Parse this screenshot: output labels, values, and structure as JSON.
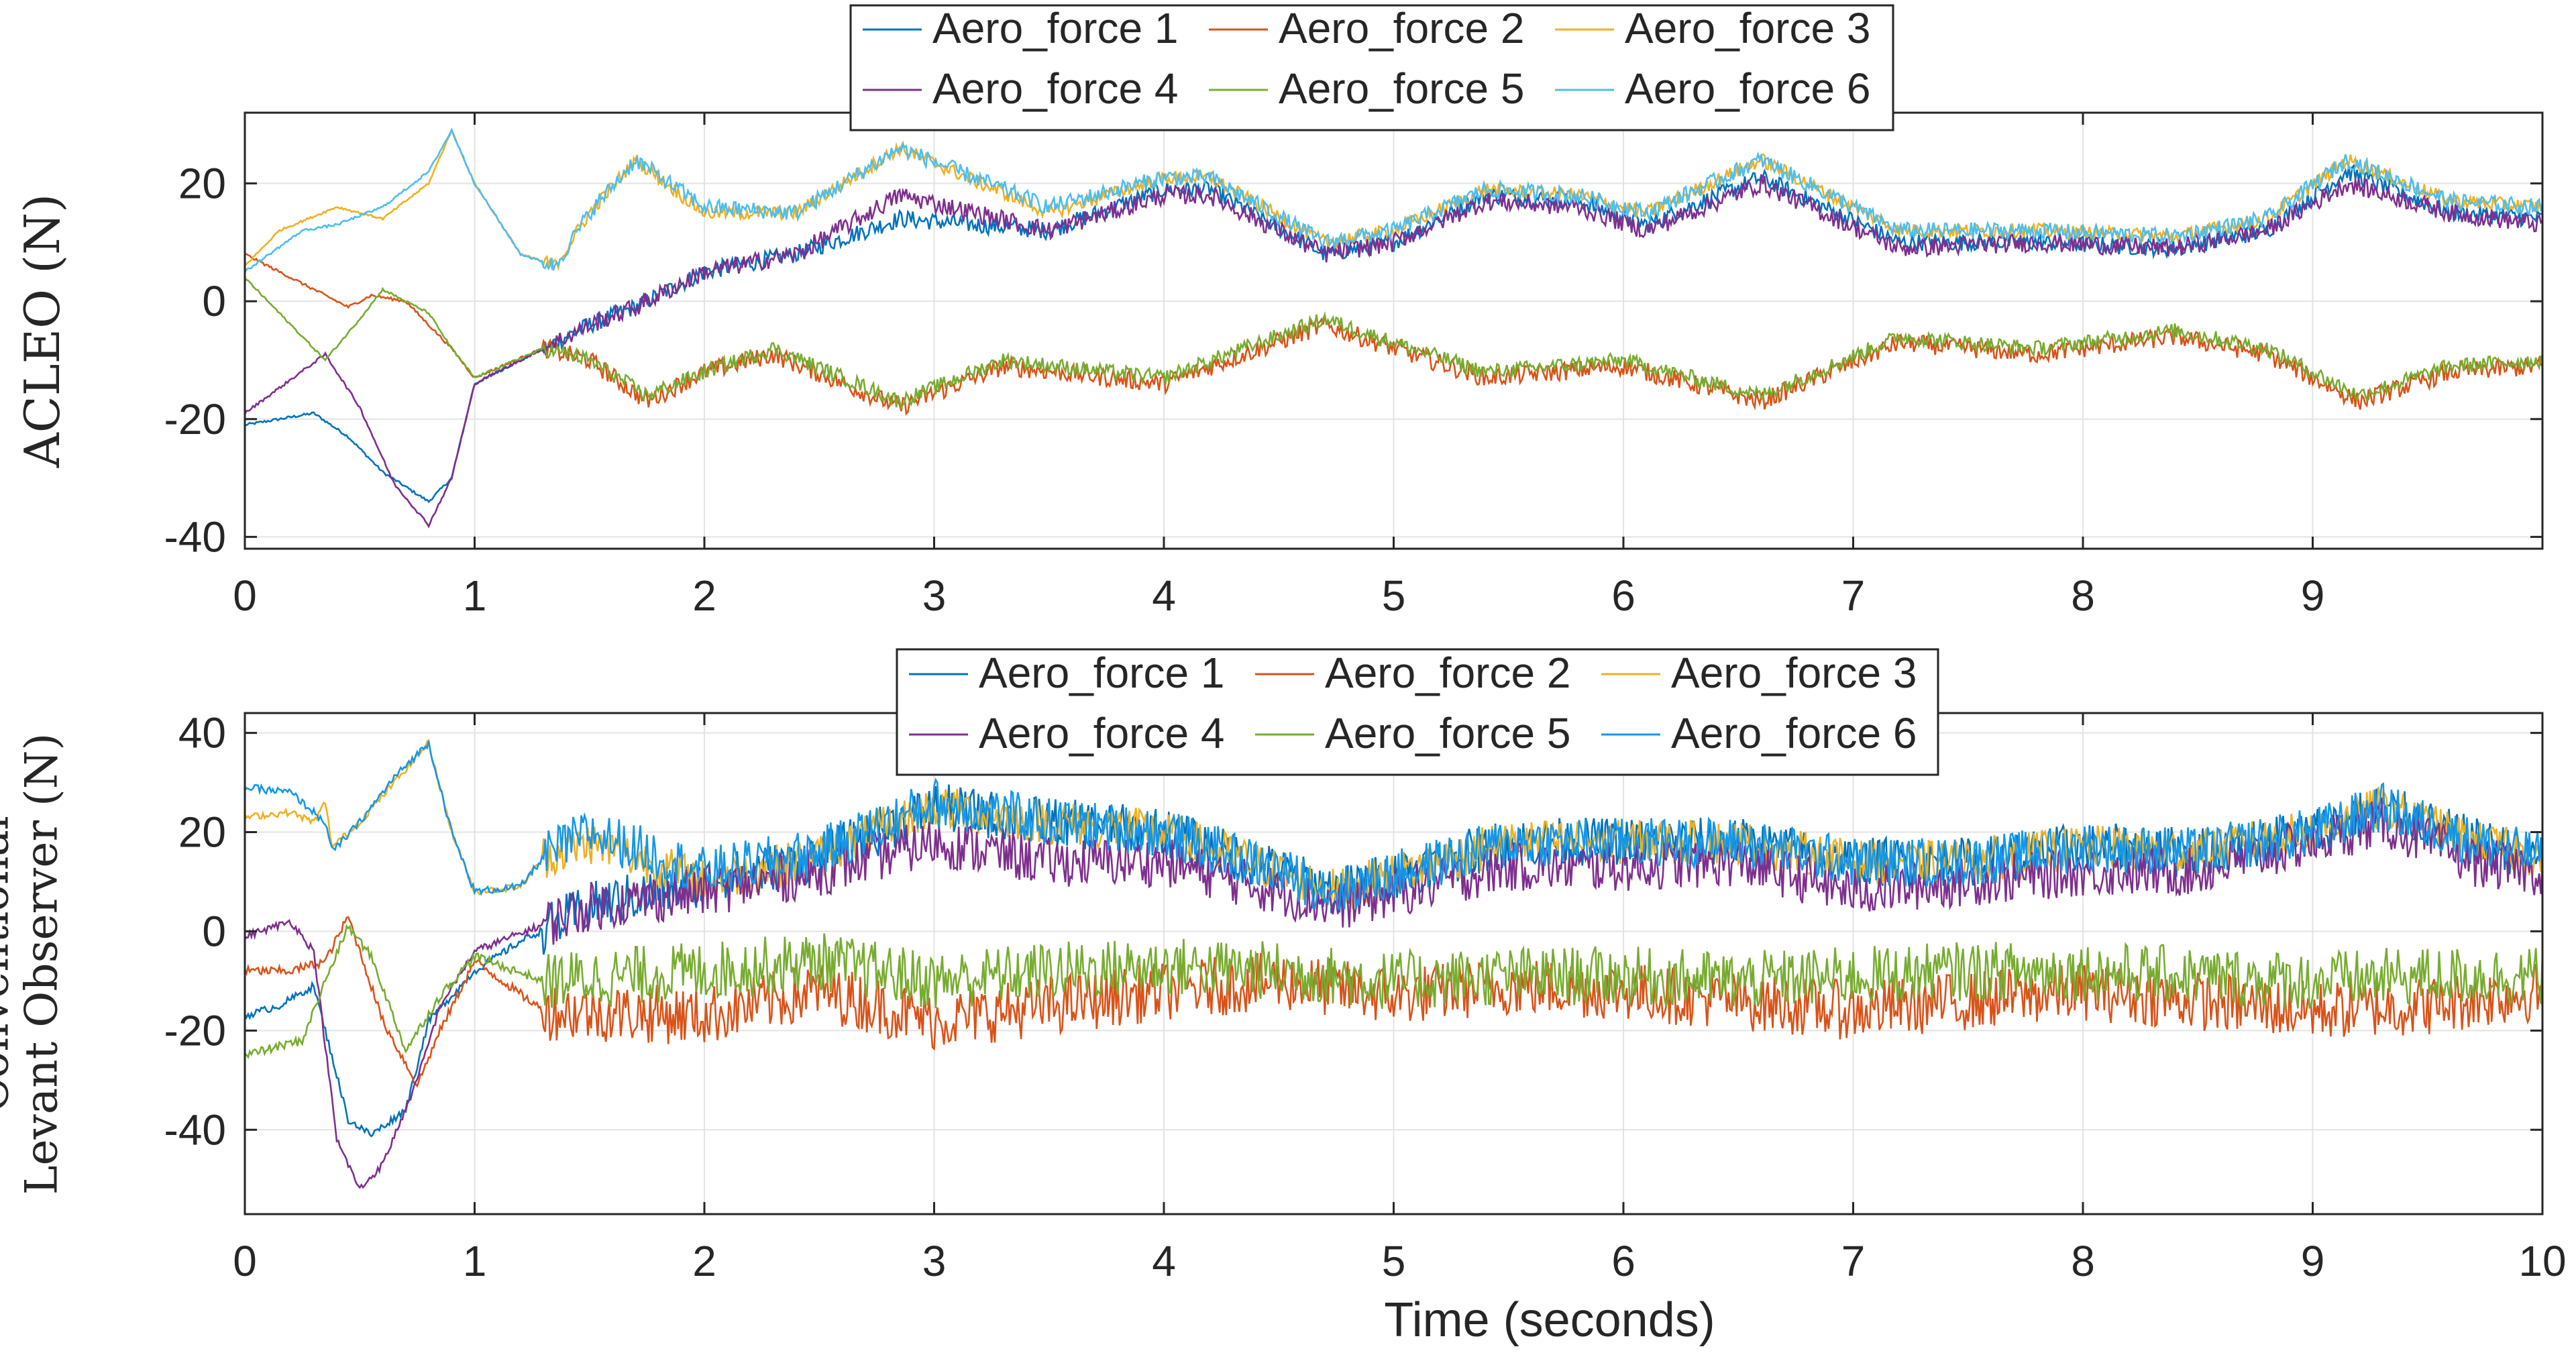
{
  "figure": {
    "xlabel": "Time (seconds)"
  },
  "chart_data": [
    {
      "type": "line",
      "ylabel": "ACLEO (N)",
      "ylabel_lines": [
        "ACLEO (N)"
      ],
      "xlim": [
        0,
        10
      ],
      "ylim": [
        -42,
        32
      ],
      "xticks": [
        0,
        1,
        2,
        3,
        4,
        5,
        6,
        7,
        8,
        9
      ],
      "xtick_labels": [
        "0",
        "1",
        "2",
        "3",
        "4",
        "5",
        "6",
        "7",
        "8",
        "9"
      ],
      "yticks": [
        -40,
        -20,
        0,
        20
      ],
      "ytick_labels": [
        "-40",
        "-20",
        "0",
        "20"
      ],
      "grid": true,
      "legend": {
        "placement": "top-center (above axes)",
        "columns": 3,
        "entries": [
          "Aero_force 1",
          "Aero_force 2",
          "Aero_force 3",
          "Aero_force 4",
          "Aero_force 5",
          "Aero_force 6"
        ]
      },
      "series": [
        {
          "name": "Aero_force 1",
          "color": "#0072BD",
          "x": [
            0,
            0.3,
            0.45,
            0.6,
            0.8,
            0.9,
            1.0,
            1.3,
            1.5,
            1.7,
            2.0,
            2.4,
            2.85,
            3.5,
            4.0,
            4.2,
            4.7,
            5.0,
            5.4,
            5.8,
            6.1,
            6.6,
            7.2,
            7.8,
            8.4,
            8.8,
            9.15,
            9.6,
            10.0
          ],
          "y": [
            -21,
            -19,
            -23,
            -29,
            -34,
            -30,
            -14,
            -8,
            -4,
            -1,
            5,
            8,
            14,
            12,
            19,
            19,
            8,
            10,
            18,
            17,
            13,
            21,
            10,
            10,
            9,
            12,
            22,
            15,
            14
          ],
          "noise": 1.5
        },
        {
          "name": "Aero_force 2",
          "color": "#D95319",
          "x": [
            0,
            0.3,
            0.45,
            0.55,
            0.7,
            0.9,
            1.0,
            1.3,
            1.5,
            1.75,
            2.0,
            2.3,
            2.85,
            3.3,
            4.0,
            4.7,
            5.0,
            5.4,
            6.0,
            6.6,
            7.2,
            7.8,
            8.4,
            8.8,
            9.2,
            9.6,
            10.0
          ],
          "y": [
            8,
            2,
            -1,
            1,
            0,
            -8,
            -13,
            -8,
            -10,
            -17,
            -12,
            -9,
            -18,
            -11,
            -14,
            -4,
            -8,
            -13,
            -11,
            -17,
            -7,
            -9,
            -6,
            -9,
            -17,
            -12,
            -11
          ],
          "noise": 1.6
        },
        {
          "name": "Aero_force 3",
          "color": "#EDB120",
          "x": [
            0,
            0.15,
            0.4,
            0.6,
            0.8,
            0.9,
            1.0,
            1.2,
            1.35,
            1.5,
            1.7,
            2.0,
            2.4,
            2.85,
            3.5,
            4.0,
            4.2,
            4.7,
            5.0,
            5.4,
            5.8,
            6.1,
            6.6,
            7.2,
            7.8,
            8.4,
            8.8,
            9.15,
            9.6,
            10.0
          ],
          "y": [
            6,
            12,
            16,
            14,
            20,
            29,
            20,
            8,
            6,
            15,
            24,
            15,
            15,
            26,
            15,
            21,
            21,
            10,
            12,
            19,
            18,
            15,
            24,
            12,
            12,
            11,
            14,
            24,
            17,
            16
          ],
          "noise": 1.2
        },
        {
          "name": "Aero_force 4",
          "color": "#7E2F8E",
          "x": [
            0,
            0.35,
            0.5,
            0.65,
            0.8,
            0.9,
            1.0,
            1.3,
            1.5,
            1.7,
            2.0,
            2.4,
            2.85,
            3.5,
            4.0,
            4.2,
            4.7,
            5.0,
            5.4,
            5.8,
            6.1,
            6.6,
            7.2,
            7.8,
            8.4,
            8.8,
            9.15,
            9.6,
            10.0
          ],
          "y": [
            -19,
            -9,
            -18,
            -31,
            -38,
            -30,
            -14,
            -8,
            -4,
            -1,
            5,
            8,
            18,
            12,
            18,
            18,
            8,
            10,
            17,
            16,
            12,
            20,
            9,
            10,
            9,
            12,
            20,
            15,
            13
          ],
          "noise": 1.6
        },
        {
          "name": "Aero_force 5",
          "color": "#77AC30",
          "x": [
            0,
            0.35,
            0.5,
            0.6,
            0.8,
            0.9,
            1.0,
            1.3,
            1.5,
            1.75,
            2.0,
            2.3,
            2.85,
            3.3,
            4.0,
            4.7,
            5.0,
            5.4,
            6.0,
            6.6,
            7.2,
            7.8,
            8.4,
            8.8,
            9.2,
            9.6,
            10.0
          ],
          "y": [
            4,
            -10,
            -3,
            2,
            -2,
            -8,
            -13,
            -8,
            -10,
            -16,
            -12,
            -8,
            -17,
            -10,
            -13,
            -3,
            -7,
            -12,
            -10,
            -16,
            -6,
            -8,
            -5,
            -8,
            -16,
            -11,
            -10
          ],
          "noise": 1.3
        },
        {
          "name": "Aero_force 6",
          "color": "#4DBEEE",
          "x": [
            0,
            0.25,
            0.4,
            0.6,
            0.8,
            0.9,
            1.0,
            1.2,
            1.35,
            1.5,
            1.7,
            2.0,
            2.4,
            2.85,
            3.5,
            4.0,
            4.2,
            4.7,
            5.0,
            5.4,
            5.8,
            6.1,
            6.6,
            7.2,
            7.8,
            8.4,
            8.8,
            9.15,
            9.6,
            10.0
          ],
          "y": [
            5,
            12,
            13,
            16,
            22,
            29,
            20,
            8,
            6,
            15,
            24,
            16,
            15,
            26,
            16,
            21,
            21,
            10,
            12,
            19,
            18,
            15,
            24,
            12,
            12,
            11,
            14,
            24,
            17,
            16
          ],
          "noise": 1.4
        }
      ]
    },
    {
      "type": "line",
      "ylabel": "Conventional Levant Observer (N)",
      "ylabel_lines": [
        "Conventional",
        "Levant Observer (N)"
      ],
      "xlim": [
        0,
        10
      ],
      "ylim": [
        -57,
        44
      ],
      "xticks": [
        0,
        1,
        2,
        3,
        4,
        5,
        6,
        7,
        8,
        9,
        10
      ],
      "xtick_labels": [
        "0",
        "1",
        "2",
        "3",
        "4",
        "5",
        "6",
        "7",
        "8",
        "9",
        "10"
      ],
      "yticks": [
        -40,
        -20,
        0,
        20,
        40
      ],
      "ytick_labels": [
        "-40",
        "-20",
        "0",
        "20",
        "40"
      ],
      "grid": true,
      "legend": {
        "placement": "top-center (overlapping axes top)",
        "columns": 3,
        "entries": [
          "Aero_force 1",
          "Aero_force 2",
          "Aero_force 3",
          "Aero_force 4",
          "Aero_force 5",
          "Aero_force 6"
        ]
      },
      "series": [
        {
          "name": "Aero_force 1",
          "color": "#0072BD",
          "x": [
            0,
            0.15,
            0.3,
            0.45,
            0.55,
            0.7,
            0.8,
            1.0,
            1.2,
            1.5,
            2.0,
            2.5,
            3.0,
            3.5,
            4.0,
            4.5,
            4.75,
            5.5,
            6.0,
            6.5,
            7.0,
            7.5,
            8.0,
            8.5,
            9.0,
            9.3,
            9.7,
            10.0
          ],
          "y": [
            -17,
            -15,
            -11,
            -38,
            -41,
            -36,
            -18,
            -8,
            -2,
            5,
            10,
            15,
            25,
            22,
            20,
            12,
            8,
            18,
            18,
            18,
            14,
            14,
            17,
            16,
            20,
            25,
            18,
            15
          ],
          "noise": 5
        },
        {
          "name": "Aero_force 2",
          "color": "#D95319",
          "x": [
            0,
            0.2,
            0.35,
            0.45,
            0.6,
            0.75,
            0.85,
            1.0,
            1.3,
            2.0,
            2.5,
            3.0,
            3.5,
            4.0,
            4.5,
            5.0,
            5.5,
            6.0,
            6.5,
            7.0,
            7.5,
            8.0,
            8.5,
            9.0,
            9.5,
            10.0
          ],
          "y": [
            -8,
            -8,
            -6,
            3,
            -18,
            -31,
            -20,
            -6,
            -16,
            -17,
            -12,
            -18,
            -15,
            -12,
            -10,
            -13,
            -11,
            -12,
            -14,
            -16,
            -14,
            -12,
            -14,
            -16,
            -15,
            -12
          ],
          "noise": 6
        },
        {
          "name": "Aero_force 3",
          "color": "#EDB120",
          "x": [
            0,
            0.2,
            0.3,
            0.35,
            0.38,
            0.5,
            0.65,
            0.8,
            0.9,
            1.0,
            1.2,
            1.3,
            1.5,
            2.0,
            2.5,
            3.0,
            3.5,
            4.0,
            4.5,
            4.75,
            5.5,
            6.0,
            6.5,
            7.0,
            7.5,
            8.0,
            8.5,
            9.0,
            9.3,
            9.7,
            10.0
          ],
          "y": [
            23,
            24,
            22,
            26,
            17,
            22,
            30,
            38,
            20,
            8,
            9,
            15,
            18,
            10,
            15,
            25,
            22,
            20,
            12,
            8,
            18,
            18,
            18,
            14,
            14,
            17,
            16,
            20,
            25,
            18,
            15
          ],
          "noise": 4.5
        },
        {
          "name": "Aero_force 4",
          "color": "#7E2F8E",
          "x": [
            0,
            0.2,
            0.3,
            0.4,
            0.5,
            0.6,
            0.75,
            0.85,
            1.0,
            1.5,
            2.0,
            2.5,
            3.0,
            3.5,
            4.0,
            4.5,
            4.75,
            5.5,
            6.0,
            6.5,
            7.0,
            7.5,
            8.0,
            8.5,
            9.0,
            9.3,
            9.7,
            10.0
          ],
          "y": [
            -1,
            2,
            -4,
            -42,
            -52,
            -47,
            -30,
            -15,
            -4,
            5,
            8,
            12,
            18,
            14,
            14,
            8,
            5,
            13,
            13,
            14,
            8,
            10,
            12,
            12,
            18,
            22,
            14,
            12
          ],
          "noise": 5
        },
        {
          "name": "Aero_force 5",
          "color": "#77AC30",
          "x": [
            0,
            0.25,
            0.35,
            0.45,
            0.55,
            0.7,
            0.85,
            1.0,
            1.3,
            2.0,
            2.5,
            3.0,
            3.5,
            4.0,
            4.5,
            5.0,
            5.5,
            6.0,
            6.5,
            7.0,
            7.5,
            8.0,
            8.5,
            9.0,
            9.5,
            10.0
          ],
          "y": [
            -25,
            -22,
            -10,
            1,
            -5,
            -24,
            -13,
            -5,
            -10,
            -8,
            -6,
            -10,
            -8,
            -7,
            -8,
            -10,
            -9,
            -9,
            -10,
            -9,
            -8,
            -8,
            -9,
            -10,
            -9,
            -9
          ],
          "noise": 6
        },
        {
          "name": "Aero_force 6",
          "color": "#1597E8",
          "x": [
            0,
            0.2,
            0.3,
            0.35,
            0.38,
            0.5,
            0.65,
            0.8,
            0.9,
            1.0,
            1.2,
            1.3,
            1.5,
            2.0,
            2.5,
            3.0,
            3.5,
            4.0,
            4.5,
            4.75,
            5.5,
            6.0,
            6.5,
            7.0,
            7.5,
            8.0,
            8.5,
            9.0,
            9.3,
            9.7,
            10.0
          ],
          "y": [
            29,
            28,
            24,
            22,
            16,
            22,
            31,
            38,
            20,
            8,
            9,
            15,
            20,
            12,
            16,
            26,
            22,
            20,
            12,
            8,
            18,
            18,
            18,
            14,
            14,
            17,
            16,
            20,
            25,
            18,
            15
          ],
          "noise": 5
        }
      ]
    }
  ]
}
